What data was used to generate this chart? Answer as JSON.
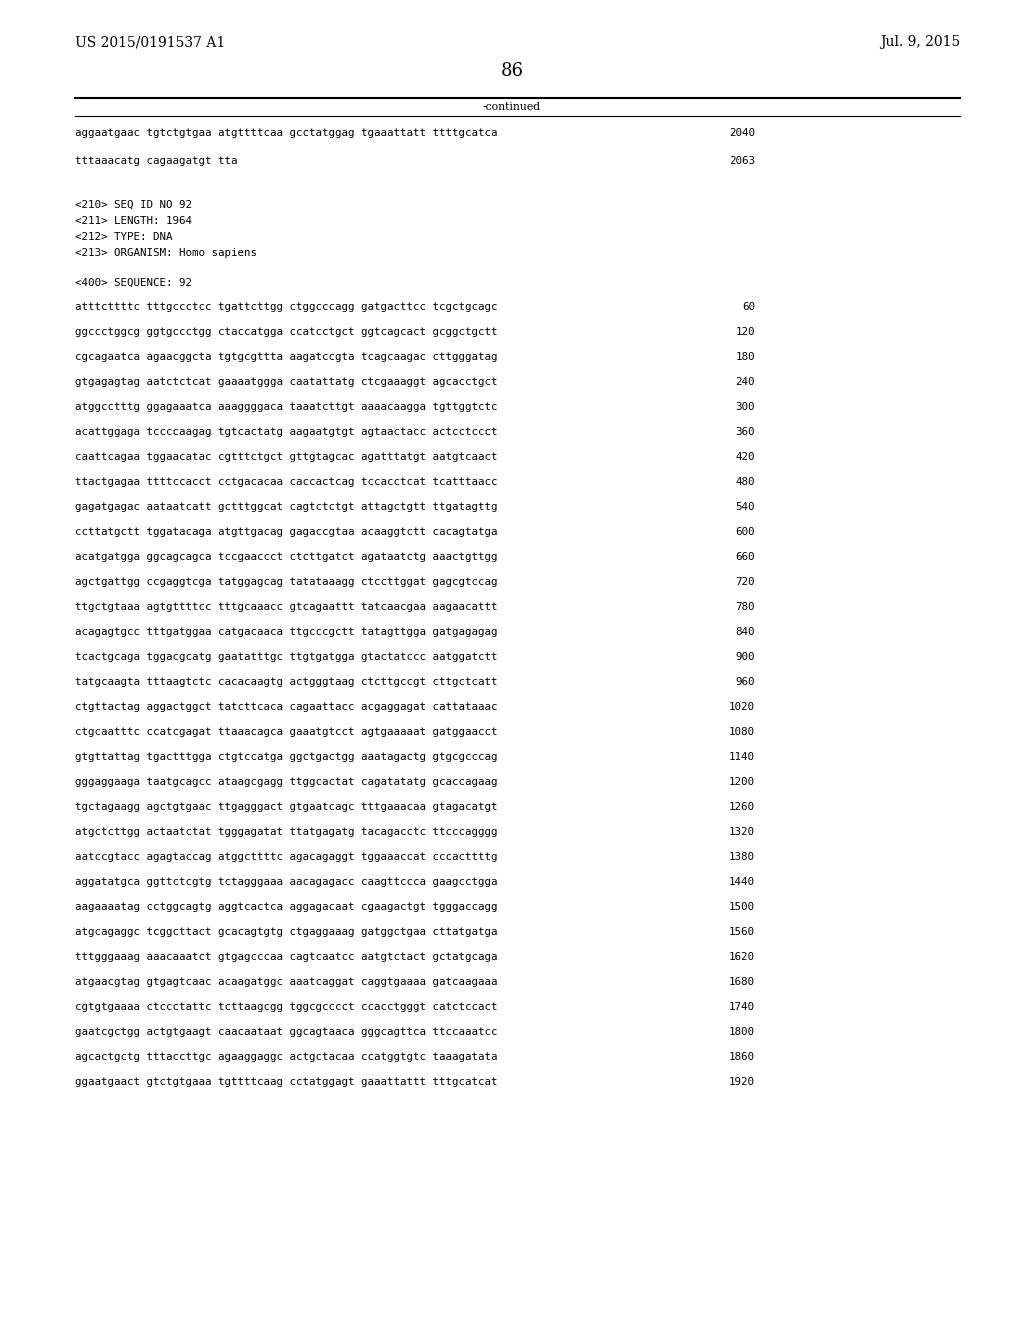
{
  "header_left": "US 2015/0191537 A1",
  "header_right": "Jul. 9, 2015",
  "page_number": "86",
  "continued_label": "-continued",
  "background_color": "#ffffff",
  "text_color": "#000000",
  "continuation_lines": [
    [
      "aggaatgaac tgtctgtgaa atgttttcaa gcctatggag tgaaattatt ttttgcatca",
      "2040"
    ],
    [
      "tttaaacatg cagaagatgt tta",
      "2063"
    ]
  ],
  "meta_lines": [
    "<210> SEQ ID NO 92",
    "<211> LENGTH: 1964",
    "<212> TYPE: DNA",
    "<213> ORGANISM: Homo sapiens"
  ],
  "sequence_label": "<400> SEQUENCE: 92",
  "sequence_lines": [
    [
      "atttcttttc tttgccctcc tgattcttgg ctggcccagg gatgacttcc tcgctgcagc",
      "60"
    ],
    [
      "ggccctggcg ggtgccctgg ctaccatgga ccatcctgct ggtcagcact gcggctgctt",
      "120"
    ],
    [
      "cgcagaatca agaacggcta tgtgcgttta aagatccgta tcagcaagac cttgggatag",
      "180"
    ],
    [
      "gtgagagtag aatctctcat gaaaatggga caatattatg ctcgaaaggt agcacctgct",
      "240"
    ],
    [
      "atggcctttg ggagaaatca aaaggggaca taaatcttgt aaaacaagga tgttggtctc",
      "300"
    ],
    [
      "acattggaga tccccaagag tgtcactatg aagaatgtgt agtaactacc actcctccct",
      "360"
    ],
    [
      "caattcagaa tggaacatac cgtttctgct gttgtagcac agatttatgt aatgtcaact",
      "420"
    ],
    [
      "ttactgagaa ttttccacct cctgacacaa caccactcag tccacctcat tcatttaacc",
      "480"
    ],
    [
      "gagatgagac aataatcatt gctttggcat cagtctctgt attagctgtt ttgatagttg",
      "540"
    ],
    [
      "ccttatgctt tggatacaga atgttgacag gagaccgtaa acaaggtctt cacagtatga",
      "600"
    ],
    [
      "acatgatgga ggcagcagca tccgaaccct ctcttgatct agataatctg aaactgttgg",
      "660"
    ],
    [
      "agctgattgg ccgaggtcga tatggagcag tatataaagg ctccttggat gagcgtccag",
      "720"
    ],
    [
      "ttgctgtaaa agtgttttcc tttgcaaacc gtcagaattt tatcaacgaa aagaacattt",
      "780"
    ],
    [
      "acagagtgcc tttgatggaa catgacaaca ttgcccgctt tatagttgga gatgagagag",
      "840"
    ],
    [
      "tcactgcaga tggacgcatg gaatatttgc ttgtgatgga gtactatccc aatggatctt",
      "900"
    ],
    [
      "tatgcaagta tttaagtctc cacacaagtg actgggtaag ctcttgccgt cttgctcatt",
      "960"
    ],
    [
      "ctgttactag aggactggct tatcttcaca cagaattacc acgaggagat cattataaac",
      "1020"
    ],
    [
      "ctgcaatttc ccatcgagat ttaaacagca gaaatgtcct agtgaaaaat gatggaacct",
      "1080"
    ],
    [
      "gtgttattag tgactttgga ctgtccatga ggctgactgg aaatagactg gtgcgcccag",
      "1140"
    ],
    [
      "gggaggaaga taatgcagcc ataagcgagg ttggcactat cagatatatg gcaccagaag",
      "1200"
    ],
    [
      "tgctagaagg agctgtgaac ttgagggact gtgaatcagc tttgaaacaa gtagacatgt",
      "1260"
    ],
    [
      "atgctcttgg actaatctat tgggagatat ttatgagatg tacagacctc ttcccagggg",
      "1320"
    ],
    [
      "aatccgtacc agagtaccag atggcttttc agacagaggt tggaaaccat cccacttttg",
      "1380"
    ],
    [
      "aggatatgca ggttctcgtg tctagggaaa aacagagacc caagttccca gaagcctgga",
      "1440"
    ],
    [
      "aagaaaatag cctggcagtg aggtcactca aggagacaat cgaagactgt tgggaccagg",
      "1500"
    ],
    [
      "atgcagaggc tcggcttact gcacagtgtg ctgaggaaag gatggctgaa cttatgatga",
      "1560"
    ],
    [
      "tttgggaaag aaacaaatct gtgagcccaa cagtcaatcc aatgtctact gctatgcaga",
      "1620"
    ],
    [
      "atgaacgtag gtgagtcaac acaagatggc aaatcaggat caggtgaaaa gatcaagaaa",
      "1680"
    ],
    [
      "cgtgtgaaaa ctccctattc tcttaagcgg tggcgcccct ccacctgggt catctccact",
      "1740"
    ],
    [
      "gaatcgctgg actgtgaagt caacaataat ggcagtaaca gggcagttca ttccaaatcc",
      "1800"
    ],
    [
      "agcactgctg tttaccttgc agaaggaggc actgctacaa ccatggtgtc taaagatata",
      "1860"
    ],
    [
      "ggaatgaact gtctgtgaaa tgttttcaag cctatggagt gaaattattt tttgcatcat",
      "1920"
    ]
  ]
}
